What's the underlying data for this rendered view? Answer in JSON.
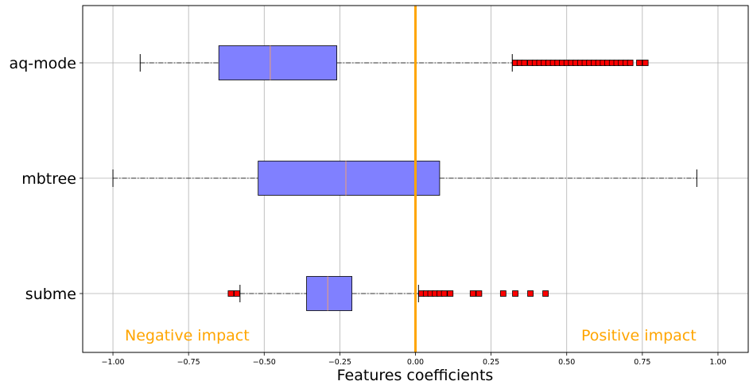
{
  "chart_data": {
    "type": "boxplot",
    "orientation": "horizontal",
    "xlabel": "Features coefficients",
    "xlim": [
      -1.1,
      1.1
    ],
    "xticks": [
      -1.0,
      -0.75,
      -0.5,
      -0.25,
      0.0,
      0.25,
      0.5,
      0.75,
      1.0
    ],
    "xtick_labels": [
      "−1.00",
      "−0.75",
      "−0.50",
      "−0.25",
      "0.00",
      "0.25",
      "0.50",
      "0.75",
      "1.00"
    ],
    "grid": true,
    "reference_line": {
      "x": 0.0,
      "color": "#ffa500"
    },
    "annotations": {
      "negative": "Negative impact",
      "positive": "Positive impact",
      "color": "#ffa500"
    },
    "box_color": "#8080ff",
    "median_color": "#f0a070",
    "outlier_color": "#ff0000",
    "series": [
      {
        "name": "aq-mode",
        "whisker_low": -0.91,
        "q1": -0.65,
        "median": -0.48,
        "q3": -0.26,
        "whisker_high": 0.32,
        "outliers": [
          0.33,
          0.345,
          0.36,
          0.38,
          0.395,
          0.41,
          0.425,
          0.44,
          0.455,
          0.47,
          0.485,
          0.5,
          0.515,
          0.53,
          0.545,
          0.56,
          0.575,
          0.59,
          0.605,
          0.62,
          0.635,
          0.65,
          0.665,
          0.68,
          0.695,
          0.71,
          0.74,
          0.76
        ]
      },
      {
        "name": "mbtree",
        "whisker_low": -1.0,
        "q1": -0.52,
        "median": -0.23,
        "q3": 0.08,
        "whisker_high": 0.93,
        "outliers": []
      },
      {
        "name": "subme",
        "whisker_low": -0.58,
        "q1": -0.36,
        "median": -0.29,
        "q3": -0.21,
        "whisker_high": 0.01,
        "outliers": [
          -0.61,
          -0.59,
          0.02,
          0.035,
          0.05,
          0.065,
          0.08,
          0.095,
          0.115,
          0.19,
          0.21,
          0.29,
          0.33,
          0.38,
          0.43
        ]
      }
    ]
  }
}
